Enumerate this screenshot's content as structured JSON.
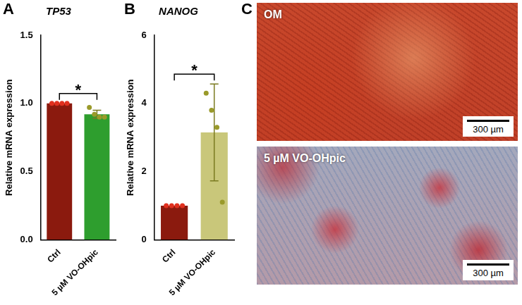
{
  "chart_data": [
    {
      "panel": "A",
      "type": "bar",
      "title": "TP53",
      "y_label": "Relative mRNA expression",
      "categories": [
        "Ctrl",
        "5 µM VO-OHpic"
      ],
      "values": [
        1.0,
        0.92
      ],
      "errors": [
        0,
        0.03
      ],
      "points": [
        [
          1.0,
          1.0,
          1.0,
          1.0
        ],
        [
          0.97,
          0.92,
          0.9,
          0.9
        ]
      ],
      "colors": [
        "#8b1a0e",
        "#2e9e2e"
      ],
      "ylim": [
        0,
        1.5
      ],
      "yticks": [
        {
          "value": 0,
          "label": "0.0"
        },
        {
          "value": 0.5,
          "label": "0.5"
        },
        {
          "value": 1,
          "label": "1.0"
        },
        {
          "value": 1.5,
          "label": "1.5"
        }
      ],
      "grid": false,
      "significance": "*"
    },
    {
      "panel": "B",
      "type": "bar",
      "title": "NANOG",
      "y_label": "Relative mRNA expression",
      "categories": [
        "Ctrl",
        "5 µM VO-OHpic"
      ],
      "values": [
        1.0,
        3.15
      ],
      "errors": [
        0,
        1.42
      ],
      "points": [
        [
          1.0,
          1.0,
          1.0,
          1.0
        ],
        [
          4.3,
          3.8,
          3.3,
          1.1
        ]
      ],
      "colors": [
        "#8b1a0e",
        "#c9c77a"
      ],
      "ylim": [
        0,
        6
      ],
      "yticks": [
        0,
        2,
        4,
        6
      ],
      "grid": false,
      "significance": "*"
    }
  ],
  "image_panel": {
    "panel": "C",
    "images": [
      {
        "label": "OM",
        "scale_bar": "300 µm"
      },
      {
        "label": "5 µM VO-OHpic",
        "scale_bar": "300 µm"
      }
    ]
  }
}
